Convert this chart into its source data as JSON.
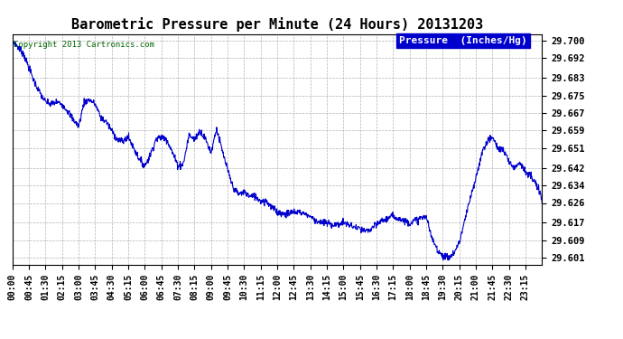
{
  "title": "Barometric Pressure per Minute (24 Hours) 20131203",
  "copyright": "Copyright 2013 Cartronics.com",
  "legend_label": "Pressure  (Inches/Hg)",
  "line_color": "#0000cc",
  "background_color": "#ffffff",
  "grid_color": "#aaaaaa",
  "yticks": [
    29.601,
    29.609,
    29.617,
    29.626,
    29.634,
    29.642,
    29.651,
    29.659,
    29.667,
    29.675,
    29.683,
    29.692,
    29.7
  ],
  "ylim": [
    29.598,
    29.703
  ],
  "xtick_labels": [
    "00:00",
    "00:45",
    "01:30",
    "02:15",
    "03:00",
    "03:45",
    "04:30",
    "05:15",
    "06:00",
    "06:45",
    "07:30",
    "08:15",
    "09:00",
    "09:45",
    "10:30",
    "11:15",
    "12:00",
    "12:45",
    "13:30",
    "14:15",
    "15:00",
    "15:45",
    "16:30",
    "17:15",
    "18:00",
    "18:45",
    "19:30",
    "20:15",
    "21:00",
    "21:45",
    "22:30",
    "23:15"
  ],
  "waypoints_t": [
    0,
    30,
    60,
    75,
    90,
    105,
    120,
    135,
    150,
    165,
    180,
    195,
    210,
    225,
    240,
    255,
    270,
    285,
    300,
    315,
    330,
    345,
    360,
    375,
    390,
    405,
    420,
    435,
    450,
    465,
    480,
    495,
    510,
    525,
    540,
    555,
    570,
    585,
    600,
    615,
    630,
    645,
    660,
    675,
    690,
    705,
    720,
    735,
    750,
    765,
    780,
    795,
    810,
    825,
    840,
    855,
    870,
    885,
    900,
    915,
    930,
    945,
    960,
    975,
    990,
    1005,
    1020,
    1035,
    1050,
    1065,
    1080,
    1095,
    1110,
    1125,
    1125,
    1140,
    1155,
    1170,
    1185,
    1200,
    1215,
    1230,
    1245,
    1260,
    1275,
    1290,
    1305,
    1320,
    1335,
    1350,
    1365,
    1380,
    1395,
    1410,
    1425,
    1440
  ],
  "waypoints_v": [
    29.7,
    29.694,
    29.681,
    29.676,
    29.672,
    29.671,
    29.672,
    29.671,
    29.668,
    29.664,
    29.661,
    29.672,
    29.673,
    29.671,
    29.665,
    29.663,
    29.659,
    29.655,
    29.654,
    29.656,
    29.651,
    29.646,
    29.643,
    29.648,
    29.655,
    29.656,
    29.655,
    29.649,
    29.643,
    29.644,
    29.657,
    29.655,
    29.659,
    29.655,
    29.649,
    29.66,
    29.65,
    29.641,
    29.633,
    29.63,
    29.631,
    29.629,
    29.629,
    29.627,
    29.627,
    29.624,
    29.622,
    29.621,
    29.621,
    29.622,
    29.622,
    29.621,
    29.62,
    29.618,
    29.617,
    29.617,
    29.616,
    29.616,
    29.617,
    29.616,
    29.615,
    29.614,
    29.613,
    29.614,
    29.616,
    29.618,
    29.619,
    29.62,
    29.619,
    29.618,
    29.617,
    29.618,
    29.619,
    29.62,
    29.615,
    29.61,
    29.605,
    29.602,
    29.601,
    29.603,
    29.608,
    29.618,
    29.628,
    29.637,
    29.648,
    29.654,
    29.656,
    29.651,
    29.65,
    29.645,
    29.642,
    29.645,
    29.64,
    29.638,
    29.634,
    29.628,
    29.626
  ]
}
